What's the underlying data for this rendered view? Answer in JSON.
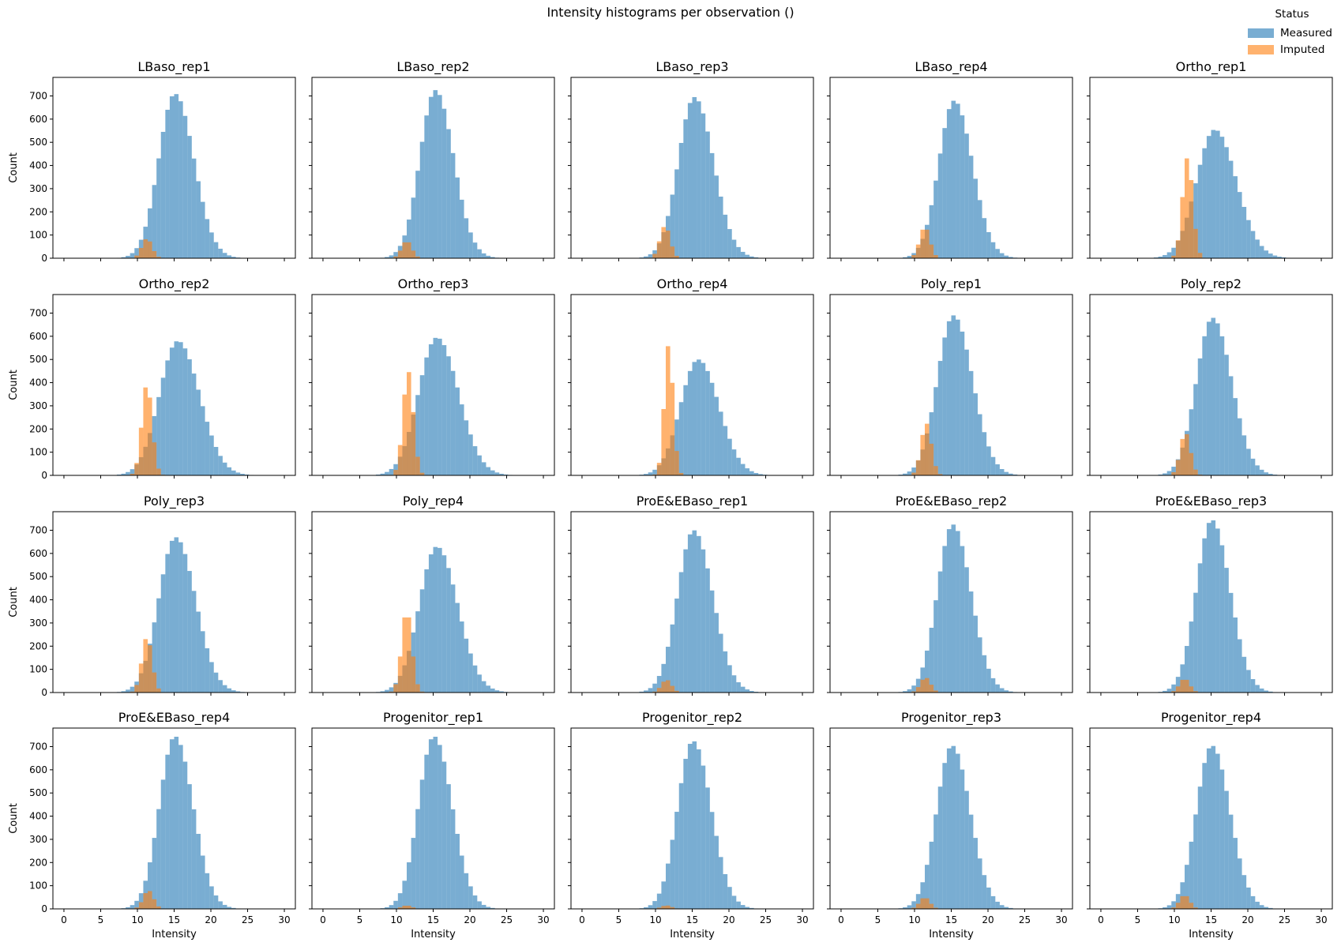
{
  "chart_data": {
    "type": "histogram",
    "title": "Intensity histograms per observation ()",
    "xlabel": "Intensity",
    "ylabel": "Count",
    "xlim": [
      -1.5,
      31.5
    ],
    "ylim": [
      0,
      780
    ],
    "xticks": [
      0,
      5,
      10,
      15,
      20,
      25,
      30
    ],
    "yticks": [
      0,
      100,
      200,
      300,
      400,
      500,
      600,
      700
    ],
    "bin_width": 0.6,
    "legend": {
      "title": "Status",
      "position": "top-right",
      "entries": [
        {
          "name": "Measured",
          "color": "#1f77b4"
        },
        {
          "name": "Imputed",
          "color": "#ff7f0e"
        }
      ]
    },
    "grid": false,
    "layout": {
      "rows": 4,
      "cols": 5,
      "sharex": true,
      "sharey": true
    },
    "panels": [
      {
        "title": "LBaso_rep1",
        "measured": {
          "center": 15.1,
          "sigma": 2.2,
          "peak": 710
        },
        "imputed": {
          "center": 11.3,
          "sigma": 0.7,
          "peak": 85
        }
      },
      {
        "title": "LBaso_rep2",
        "measured": {
          "center": 15.3,
          "sigma": 2.1,
          "peak": 725
        },
        "imputed": {
          "center": 11.4,
          "sigma": 0.7,
          "peak": 75
        }
      },
      {
        "title": "LBaso_rep3",
        "measured": {
          "center": 15.3,
          "sigma": 2.2,
          "peak": 695
        },
        "imputed": {
          "center": 11.3,
          "sigma": 0.7,
          "peak": 140
        }
      },
      {
        "title": "LBaso_rep4",
        "measured": {
          "center": 15.4,
          "sigma": 2.1,
          "peak": 680
        },
        "imputed": {
          "center": 11.4,
          "sigma": 0.7,
          "peak": 135
        }
      },
      {
        "title": "Ortho_rep1",
        "measured": {
          "center": 15.5,
          "sigma": 2.5,
          "peak": 555
        },
        "imputed": {
          "center": 11.8,
          "sigma": 0.7,
          "peak": 435
        }
      },
      {
        "title": "Ortho_rep2",
        "measured": {
          "center": 15.5,
          "sigma": 2.5,
          "peak": 580
        },
        "imputed": {
          "center": 11.3,
          "sigma": 0.7,
          "peak": 395
        }
      },
      {
        "title": "Ortho_rep3",
        "measured": {
          "center": 15.5,
          "sigma": 2.5,
          "peak": 595
        },
        "imputed": {
          "center": 11.6,
          "sigma": 0.7,
          "peak": 450
        }
      },
      {
        "title": "Ortho_rep4",
        "measured": {
          "center": 15.8,
          "sigma": 2.4,
          "peak": 500
        },
        "imputed": {
          "center": 11.8,
          "sigma": 0.6,
          "peak": 565
        }
      },
      {
        "title": "Poly_rep1",
        "measured": {
          "center": 15.3,
          "sigma": 2.2,
          "peak": 690
        },
        "imputed": {
          "center": 11.6,
          "sigma": 0.7,
          "peak": 225
        }
      },
      {
        "title": "Poly_rep2",
        "measured": {
          "center": 15.2,
          "sigma": 2.2,
          "peak": 680
        },
        "imputed": {
          "center": 11.5,
          "sigma": 0.7,
          "peak": 185
        }
      },
      {
        "title": "Poly_rep3",
        "measured": {
          "center": 15.2,
          "sigma": 2.3,
          "peak": 670
        },
        "imputed": {
          "center": 11.3,
          "sigma": 0.7,
          "peak": 240
        }
      },
      {
        "title": "Poly_rep4",
        "measured": {
          "center": 15.5,
          "sigma": 2.4,
          "peak": 630
        },
        "imputed": {
          "center": 11.4,
          "sigma": 0.7,
          "peak": 355
        }
      },
      {
        "title": "ProE&EBaso_rep1",
        "measured": {
          "center": 15.2,
          "sigma": 2.2,
          "peak": 700
        },
        "imputed": {
          "center": 11.5,
          "sigma": 0.7,
          "peak": 55
        }
      },
      {
        "title": "ProE&EBaso_rep2",
        "measured": {
          "center": 15.2,
          "sigma": 2.1,
          "peak": 725
        },
        "imputed": {
          "center": 11.5,
          "sigma": 0.7,
          "peak": 65
        }
      },
      {
        "title": "ProE&EBaso_rep3",
        "measured": {
          "center": 15.1,
          "sigma": 2.1,
          "peak": 745
        },
        "imputed": {
          "center": 11.4,
          "sigma": 0.7,
          "peak": 60
        }
      },
      {
        "title": "ProE&EBaso_rep4",
        "measured": {
          "center": 15.1,
          "sigma": 2.1,
          "peak": 745
        },
        "imputed": {
          "center": 11.5,
          "sigma": 0.7,
          "peak": 80
        }
      },
      {
        "title": "Progenitor_rep1",
        "measured": {
          "center": 15.1,
          "sigma": 2.1,
          "peak": 745
        },
        "imputed": {
          "center": 11.4,
          "sigma": 0.7,
          "peak": 15
        }
      },
      {
        "title": "Progenitor_rep2",
        "measured": {
          "center": 15.1,
          "sigma": 2.1,
          "peak": 725
        },
        "imputed": {
          "center": 11.5,
          "sigma": 0.7,
          "peak": 15
        }
      },
      {
        "title": "Progenitor_rep3",
        "measured": {
          "center": 15.1,
          "sigma": 2.1,
          "peak": 705
        },
        "imputed": {
          "center": 11.4,
          "sigma": 0.7,
          "peak": 50
        }
      },
      {
        "title": "Progenitor_rep4",
        "measured": {
          "center": 15.1,
          "sigma": 2.1,
          "peak": 705
        },
        "imputed": {
          "center": 11.4,
          "sigma": 0.7,
          "peak": 60
        }
      }
    ]
  }
}
